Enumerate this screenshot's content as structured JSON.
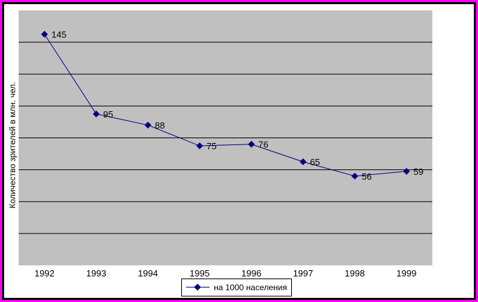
{
  "chart_data": {
    "type": "line",
    "categories": [
      "1992",
      "1993",
      "1994",
      "1995",
      "1996",
      "1997",
      "1998",
      "1999"
    ],
    "series": [
      {
        "name": "на 1000 населения",
        "values": [
          145,
          95,
          88,
          75,
          76,
          65,
          56,
          59
        ]
      }
    ],
    "title": "",
    "xlabel": "",
    "ylabel": "Количество зрителей в  млн. чел.",
    "ylim": [
      0,
      160
    ],
    "grid": true,
    "legend": "bottom",
    "colors": {
      "line": "#000080",
      "plot_bg": "#c0c0c0",
      "outer_bg": "#ff00ff",
      "grid": "#000000"
    }
  }
}
